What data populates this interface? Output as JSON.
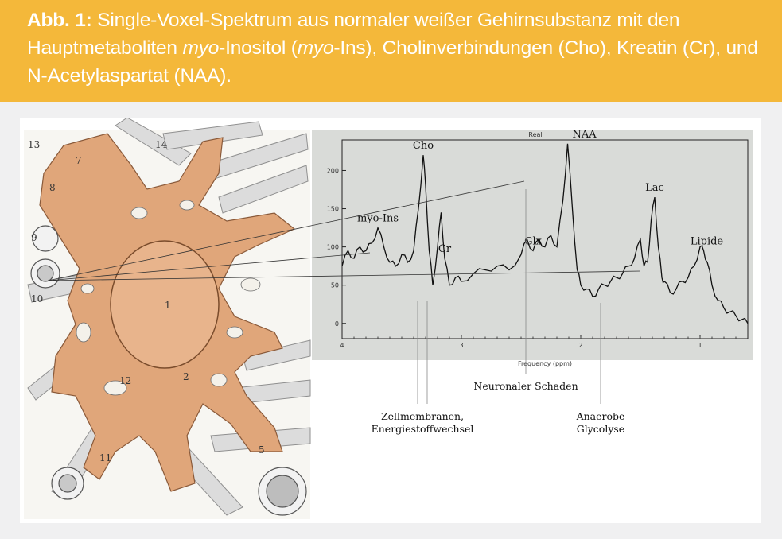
{
  "caption": {
    "abb": "Abb. 1:",
    "part1": " Single-Voxel-Spektrum aus normaler weißer Gehirnsubstanz mit den Hauptmetaboliten ",
    "myo1": "myo",
    "part2": "-Inositol (",
    "myo2": "myo",
    "part3": "-Ins), Cholinverbindungen (Cho), Kreatin (Cr), und N-Acetylaspartat (NAA)."
  },
  "colors": {
    "caption_bg": "#f4b83a",
    "caption_text": "#ffffff",
    "plot_bg": "#d9dbd8",
    "cell_fill": "#e0a67a",
    "line": "#111111"
  },
  "illustration": {
    "labels": [
      "13",
      "14",
      "7",
      "8",
      "9",
      "10",
      "1",
      "12",
      "2",
      "11",
      "5"
    ]
  },
  "chart_data": {
    "type": "line",
    "title": "Real",
    "xlabel": "Frequency (ppm)",
    "ylabel": "",
    "x_reversed": true,
    "xlim": [
      4.0,
      0.6
    ],
    "ylim": [
      -20,
      240
    ],
    "xticks": [
      4,
      3,
      2,
      1
    ],
    "yticks": [
      0,
      50,
      100,
      150,
      200
    ],
    "x": [
      4.0,
      3.95,
      3.9,
      3.85,
      3.8,
      3.75,
      3.7,
      3.65,
      3.6,
      3.55,
      3.5,
      3.45,
      3.4,
      3.36,
      3.32,
      3.3,
      3.27,
      3.24,
      3.2,
      3.17,
      3.14,
      3.1,
      3.05,
      3.0,
      2.9,
      2.8,
      2.7,
      2.6,
      2.5,
      2.45,
      2.4,
      2.35,
      2.3,
      2.25,
      2.2,
      2.15,
      2.11,
      2.07,
      2.03,
      2.0,
      1.95,
      1.9,
      1.85,
      1.8,
      1.75,
      1.7,
      1.65,
      1.6,
      1.55,
      1.5,
      1.47,
      1.44,
      1.41,
      1.38,
      1.35,
      1.32,
      1.3,
      1.25,
      1.2,
      1.15,
      1.1,
      1.05,
      1.0,
      0.97,
      0.94,
      0.9,
      0.85,
      0.8,
      0.75,
      0.7,
      0.65,
      0.6
    ],
    "y": [
      75,
      95,
      85,
      100,
      95,
      105,
      125,
      100,
      80,
      75,
      90,
      80,
      95,
      150,
      220,
      180,
      95,
      50,
      100,
      145,
      85,
      50,
      60,
      55,
      65,
      70,
      75,
      70,
      90,
      110,
      95,
      110,
      100,
      115,
      100,
      160,
      235,
      150,
      70,
      50,
      45,
      35,
      45,
      50,
      55,
      60,
      65,
      75,
      85,
      110,
      75,
      80,
      135,
      165,
      100,
      60,
      55,
      40,
      45,
      55,
      60,
      75,
      100,
      95,
      80,
      50,
      30,
      20,
      15,
      10,
      5,
      0
    ],
    "peaks": [
      {
        "label": "myo-Ins",
        "x": 3.7
      },
      {
        "label": "Cho",
        "x": 3.32
      },
      {
        "label": "Cr",
        "x": 3.14
      },
      {
        "label": "Glx",
        "x": 2.4
      },
      {
        "label": "NAA",
        "x": 2.11
      },
      {
        "label": "Lac",
        "x": 1.38
      },
      {
        "label": "Lipide",
        "x": 0.97
      }
    ],
    "annotations": [
      {
        "lines": [
          "Neuronaler Schaden"
        ]
      },
      {
        "lines": [
          "Zellmembranen,",
          "Energiestoffwechsel"
        ]
      },
      {
        "lines": [
          "Anaerobe",
          "Glycolyse"
        ]
      }
    ]
  }
}
